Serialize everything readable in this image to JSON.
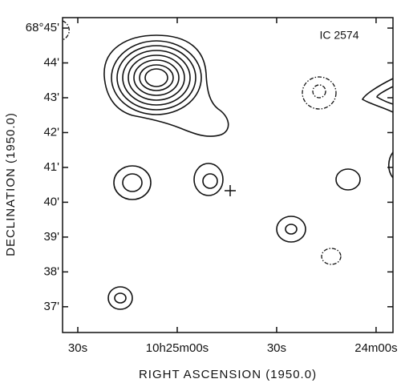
{
  "chart_data": {
    "type": "contour",
    "title": "IC 2574",
    "xlabel": "RIGHT ASCENSION (1950.0)",
    "ylabel": "DECLINATION (1950.0)",
    "xlim": [
      94.6,
      -5.1
    ],
    "xticks": [
      {
        "value": 90,
        "label": "30s"
      },
      {
        "value": 60,
        "label": "10h25m00s"
      },
      {
        "value": 30,
        "label": "30s"
      },
      {
        "value": 0,
        "label": "24m00s"
      }
    ],
    "ylim": [
      36.26,
      45.3
    ],
    "yticks": [
      {
        "value": 45,
        "label": "68°45'"
      },
      {
        "value": 44,
        "label": "44'"
      },
      {
        "value": 43,
        "label": "43'"
      },
      {
        "value": 42,
        "label": "42'"
      },
      {
        "value": 41,
        "label": "41'"
      },
      {
        "value": 40,
        "label": "40'"
      },
      {
        "value": 39,
        "label": "39'"
      },
      {
        "value": 38,
        "label": "38'"
      },
      {
        "value": 37,
        "label": "37'"
      }
    ]
  }
}
